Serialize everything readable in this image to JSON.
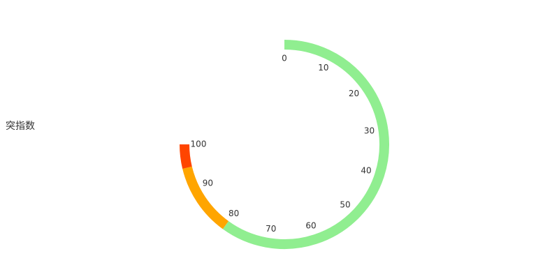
{
  "chart_data": {
    "type": "gauge",
    "series_name": "突指数",
    "min": 0,
    "max": 100,
    "start_angle_deg": 90,
    "end_angle_deg": -180,
    "clockwise": true,
    "split_number": 10,
    "pointer": "none",
    "bands": [
      {
        "from": 0,
        "to": 80,
        "color": "#90ee90"
      },
      {
        "from": 80,
        "to": 95,
        "color": "#ffa500"
      },
      {
        "from": 95,
        "to": 100,
        "color": "#ff4500"
      }
    ],
    "tick_labels": [
      "0",
      "10",
      "20",
      "30",
      "40",
      "50",
      "60",
      "70",
      "80",
      "90",
      "100"
    ]
  }
}
